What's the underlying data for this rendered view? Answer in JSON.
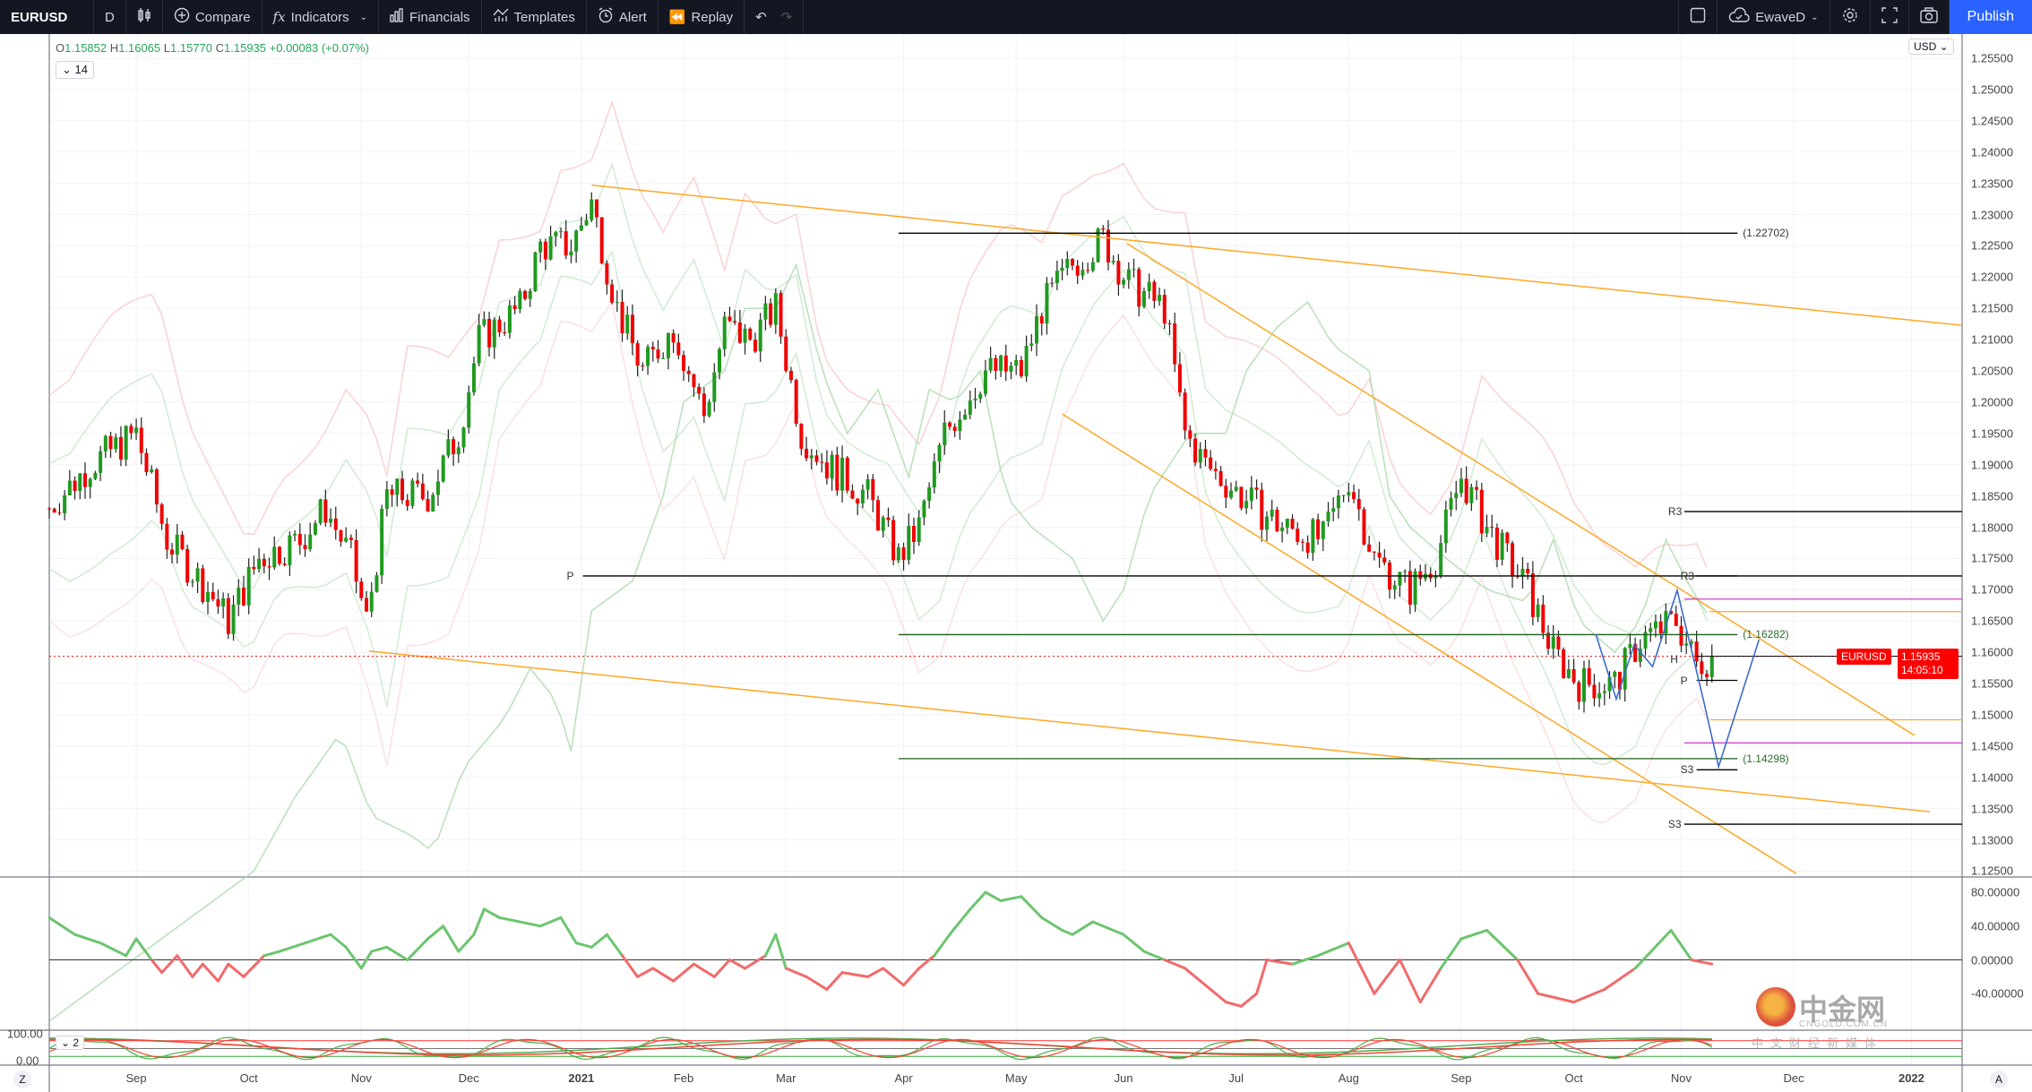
{
  "toolbar": {
    "symbol": "EURUSD",
    "interval": "D",
    "compare": "Compare",
    "indicators": "Indicators",
    "financials": "Financials",
    "templates": "Templates",
    "alert": "Alert",
    "replay": "Replay",
    "layout_name": "EwaveD",
    "publish": "Publish"
  },
  "legend": {
    "o_label": "O",
    "o": "1.15852",
    "h_label": "H",
    "h": "1.16065",
    "l_label": "L",
    "l": "1.15770",
    "c_label": "C",
    "c": "1.15935",
    "change": "+0.00083 (+0.07%)",
    "indicator_badge": "14",
    "stoch_badge": "2"
  },
  "currency": "USD",
  "last_price": {
    "symbol": "EURUSD",
    "price": "1.15935",
    "countdown": "14:05:10"
  },
  "buttons": {
    "z": "Z",
    "a": "A"
  },
  "watermark": {
    "name": "中金网",
    "url": "CNGOLD.COM.CN",
    "tagline": "中文财经新媒体"
  },
  "colors": {
    "up": "#1f9a1f",
    "down": "#f00000",
    "trend": "#ffa726",
    "accent": "#2962ff",
    "osc_up": "#6cc56f",
    "osc_down": "#f26a6a"
  },
  "chart_data": {
    "type": "candlestick",
    "symbol": "EURUSD",
    "interval": "D",
    "price_ticks": [
      "1.25500",
      "1.25000",
      "1.24500",
      "1.24000",
      "1.23500",
      "1.23000",
      "1.22500",
      "1.22000",
      "1.21500",
      "1.21000",
      "1.20500",
      "1.20000",
      "1.19500",
      "1.19000",
      "1.18500",
      "1.18000",
      "1.17500",
      "1.17000",
      "1.16500",
      "1.16000",
      "1.15500",
      "1.15000",
      "1.14500",
      "1.14000",
      "1.13500",
      "1.13000",
      "1.12500"
    ],
    "time_ticks": [
      {
        "label": "Sep",
        "bar": 17
      },
      {
        "label": "Oct",
        "bar": 39
      },
      {
        "label": "Nov",
        "bar": 61
      },
      {
        "label": "Dec",
        "bar": 82
      },
      {
        "label": "2021",
        "bar": 104
      },
      {
        "label": "Feb",
        "bar": 124
      },
      {
        "label": "Mar",
        "bar": 144
      },
      {
        "label": "Apr",
        "bar": 167
      },
      {
        "label": "May",
        "bar": 189
      },
      {
        "label": "Jun",
        "bar": 210
      },
      {
        "label": "Jul",
        "bar": 232
      },
      {
        "label": "Aug",
        "bar": 254
      },
      {
        "label": "Sep",
        "bar": 276
      },
      {
        "label": "Oct",
        "bar": 298
      },
      {
        "label": "Nov",
        "bar": 319
      },
      {
        "label": "Dec",
        "bar": 341
      },
      {
        "label": "2022",
        "bar": 364
      }
    ],
    "close_path": [
      [
        0,
        1.183
      ],
      [
        8,
        1.19
      ],
      [
        17,
        1.195
      ],
      [
        23,
        1.178
      ],
      [
        31,
        1.17
      ],
      [
        35,
        1.165
      ],
      [
        41,
        1.175
      ],
      [
        49,
        1.178
      ],
      [
        54,
        1.183
      ],
      [
        59,
        1.175
      ],
      [
        62,
        1.165
      ],
      [
        66,
        1.185
      ],
      [
        74,
        1.185
      ],
      [
        80,
        1.195
      ],
      [
        84,
        1.21
      ],
      [
        92,
        1.215
      ],
      [
        96,
        1.225
      ],
      [
        102,
        1.225
      ],
      [
        106,
        1.232
      ],
      [
        111,
        1.215
      ],
      [
        116,
        1.205
      ],
      [
        122,
        1.212
      ],
      [
        128,
        1.198
      ],
      [
        132,
        1.212
      ],
      [
        137,
        1.21
      ],
      [
        142,
        1.215
      ],
      [
        147,
        1.195
      ],
      [
        152,
        1.19
      ],
      [
        160,
        1.185
      ],
      [
        166,
        1.175
      ],
      [
        170,
        1.18
      ],
      [
        175,
        1.195
      ],
      [
        183,
        1.205
      ],
      [
        190,
        1.205
      ],
      [
        194,
        1.215
      ],
      [
        200,
        1.222
      ],
      [
        206,
        1.226
      ],
      [
        211,
        1.219
      ],
      [
        218,
        1.215
      ],
      [
        222,
        1.195
      ],
      [
        226,
        1.19
      ],
      [
        233,
        1.185
      ],
      [
        241,
        1.18
      ],
      [
        249,
        1.178
      ],
      [
        254,
        1.188
      ],
      [
        259,
        1.175
      ],
      [
        266,
        1.17
      ],
      [
        271,
        1.175
      ],
      [
        276,
        1.188
      ],
      [
        281,
        1.18
      ],
      [
        289,
        1.17
      ],
      [
        294,
        1.16
      ],
      [
        299,
        1.155
      ],
      [
        306,
        1.155
      ],
      [
        311,
        1.162
      ],
      [
        318,
        1.165
      ],
      [
        322,
        1.158
      ],
      [
        325,
        1.15935
      ]
    ],
    "last_price": 1.15935,
    "levels": [
      {
        "label": "(1.22702)",
        "price": 1.22702,
        "from": 166,
        "to": 330,
        "color": "#000000",
        "label_color": "#333333",
        "side": "right"
      },
      {
        "label": "P",
        "price": 1.1722,
        "from": 104.3,
        "to": null,
        "color": "#000000",
        "label_color": "#333333",
        "side": "left"
      },
      {
        "label": "R3",
        "price": 1.1825,
        "from": 319.6,
        "to": null,
        "color": "#000000",
        "label_color": "#333333",
        "side": "left"
      },
      {
        "label": "R3",
        "price": 1.1722,
        "from": 322,
        "to": 330,
        "color": "#000000",
        "label_color": "#333333",
        "side": "left"
      },
      {
        "label": "(1.16282)",
        "price": 1.16282,
        "from": 166,
        "to": 330,
        "color": "#1e5e1e",
        "label_color": "#2e6b2e",
        "side": "right"
      },
      {
        "label": "H",
        "price": 1.1588,
        "from": 320,
        "to": 320,
        "color": "#000000",
        "label_color": "#333333",
        "side": "left"
      },
      {
        "label": "P",
        "price": 1.1555,
        "from": 322,
        "to": 330,
        "color": "#000000",
        "label_color": "#333333",
        "side": "left"
      },
      {
        "label": "(1.14298)",
        "price": 1.14298,
        "from": 166,
        "to": 330,
        "color": "#1e5e1e",
        "label_color": "#2e6b2e",
        "side": "right"
      },
      {
        "label": "S3",
        "price": 1.1412,
        "from": 322,
        "to": 330,
        "color": "#000000",
        "label_color": "#333333",
        "side": "left"
      },
      {
        "label": "S3",
        "price": 1.1325,
        "from": 319.6,
        "to": null,
        "color": "#000000",
        "label_color": "#333333",
        "side": "left"
      },
      {
        "label": "",
        "price": 1.1685,
        "from": 319.6,
        "to": null,
        "color": "#cc44cc",
        "label_color": "#cc44cc",
        "side": "left"
      },
      {
        "label": "",
        "price": 1.1455,
        "from": 319.6,
        "to": null,
        "color": "#cc44cc",
        "label_color": "#cc44cc",
        "side": "left"
      },
      {
        "label": "",
        "price": 1.1665,
        "from": 324.6,
        "to": null,
        "color": "#ffa726",
        "label_color": "#ffa726",
        "side": "left"
      },
      {
        "label": "",
        "price": 1.1492,
        "from": 324.6,
        "to": null,
        "color": "#ffa726",
        "label_color": "#ffa726",
        "side": "left"
      }
    ],
    "trendlines": [
      [
        [
          106,
          1.2347
        ],
        [
          373.7,
          1.2123
        ]
      ],
      [
        [
          62.5,
          1.1602
        ],
        [
          367.6,
          1.1345
        ]
      ],
      [
        [
          198,
          1.1981
        ],
        [
          341.5,
          1.1246
        ]
      ],
      [
        [
          210.6,
          1.2254
        ],
        [
          364.6,
          1.1467
        ]
      ]
    ],
    "wave_path": [
      [
        302.3,
        1.1629
      ],
      [
        306.3,
        1.1525
      ],
      [
        309.8,
        1.1612
      ],
      [
        313.4,
        1.1577
      ],
      [
        318.2,
        1.1699
      ],
      [
        323.3,
        1.1525
      ],
      [
        326.3,
        1.1417
      ],
      [
        334.2,
        1.162
      ]
    ],
    "oscillator": {
      "ticks": [
        "80.00000",
        "40.00000",
        "0.00000",
        "-40.00000"
      ],
      "tick_values": [
        80,
        40,
        0,
        -40
      ],
      "values": [
        [
          0,
          50
        ],
        [
          5,
          30
        ],
        [
          10,
          20
        ],
        [
          15,
          5
        ],
        [
          17,
          25
        ],
        [
          20,
          0
        ],
        [
          22,
          -15
        ],
        [
          25,
          5
        ],
        [
          28,
          -20
        ],
        [
          30,
          -5
        ],
        [
          33,
          -25
        ],
        [
          35,
          -5
        ],
        [
          38,
          -20
        ],
        [
          42,
          5
        ],
        [
          45,
          10
        ],
        [
          50,
          20
        ],
        [
          55,
          30
        ],
        [
          58,
          15
        ],
        [
          61,
          -10
        ],
        [
          63,
          10
        ],
        [
          66,
          15
        ],
        [
          70,
          0
        ],
        [
          74,
          25
        ],
        [
          77,
          40
        ],
        [
          80,
          10
        ],
        [
          83,
          30
        ],
        [
          85,
          60
        ],
        [
          88,
          50
        ],
        [
          92,
          45
        ],
        [
          96,
          40
        ],
        [
          100,
          50
        ],
        [
          103,
          20
        ],
        [
          106,
          15
        ],
        [
          109,
          30
        ],
        [
          112,
          5
        ],
        [
          115,
          -20
        ],
        [
          118,
          -10
        ],
        [
          122,
          -25
        ],
        [
          126,
          -5
        ],
        [
          130,
          -20
        ],
        [
          133,
          0
        ],
        [
          136,
          -10
        ],
        [
          140,
          5
        ],
        [
          142,
          30
        ],
        [
          144,
          -10
        ],
        [
          148,
          -20
        ],
        [
          152,
          -35
        ],
        [
          155,
          -15
        ],
        [
          160,
          -20
        ],
        [
          163,
          -10
        ],
        [
          167,
          -30
        ],
        [
          170,
          -10
        ],
        [
          173,
          5
        ],
        [
          176,
          30
        ],
        [
          180,
          60
        ],
        [
          183,
          80
        ],
        [
          186,
          70
        ],
        [
          190,
          75
        ],
        [
          194,
          50
        ],
        [
          198,
          35
        ],
        [
          200,
          30
        ],
        [
          204,
          45
        ],
        [
          210,
          30
        ],
        [
          214,
          10
        ],
        [
          218,
          0
        ],
        [
          222,
          -10
        ],
        [
          226,
          -30
        ],
        [
          230,
          -50
        ],
        [
          233,
          -55
        ],
        [
          236,
          -40
        ],
        [
          238,
          0
        ],
        [
          243,
          -5
        ],
        [
          248,
          5
        ],
        [
          254,
          20
        ],
        [
          259,
          -40
        ],
        [
          264,
          0
        ],
        [
          268,
          -50
        ],
        [
          272,
          -10
        ],
        [
          276,
          25
        ],
        [
          281,
          35
        ],
        [
          287,
          0
        ],
        [
          291,
          -40
        ],
        [
          298,
          -50
        ],
        [
          304,
          -35
        ],
        [
          310,
          -10
        ],
        [
          317,
          35
        ],
        [
          321,
          0
        ],
        [
          325,
          -5
        ]
      ]
    },
    "stochastic": {
      "ticks": [
        "100.00",
        "0.00"
      ],
      "bands": [
        80,
        20
      ]
    }
  }
}
